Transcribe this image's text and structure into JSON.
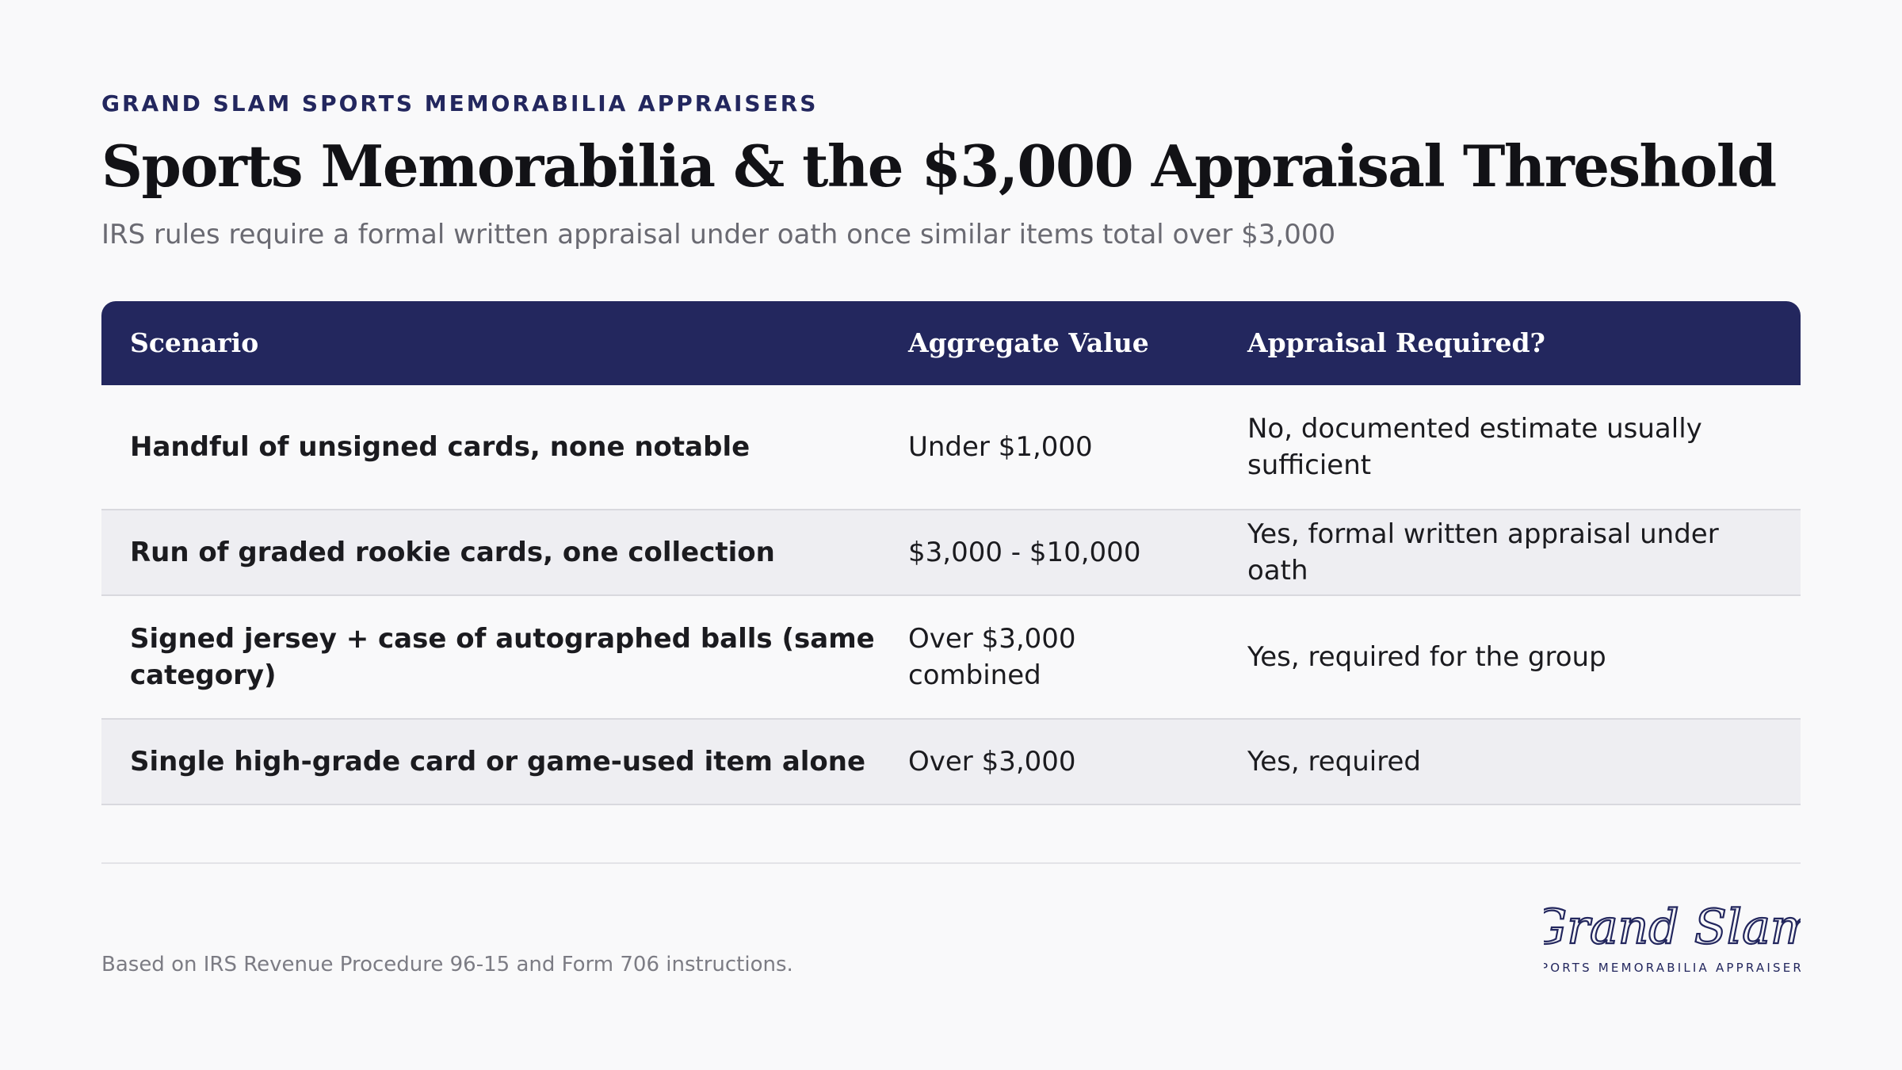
{
  "header": {
    "eyebrow": "GRAND SLAM SPORTS MEMORABILIA APPRAISERS",
    "title": "Sports Memorabilia & the $3,000 Appraisal Threshold",
    "subtitle": "IRS rules require a formal written appraisal under oath once similar items total over $3,000"
  },
  "table": {
    "columns": [
      "Scenario",
      "Aggregate Value",
      "Appraisal Required?"
    ],
    "rows": [
      {
        "scenario": "Handful of unsigned cards, none notable",
        "value": "Under $1,000",
        "required": "No, documented estimate usually sufficient"
      },
      {
        "scenario": "Run of graded rookie cards, one collection",
        "value": "$3,000 - $10,000",
        "required": "Yes, formal written appraisal under oath"
      },
      {
        "scenario": "Signed jersey + case of autographed balls (same category)",
        "value": "Over $3,000 combined",
        "required": "Yes, required for the group"
      },
      {
        "scenario": "Single high-grade card or game-used item alone",
        "value": "Over $3,000",
        "required": "Yes, required"
      }
    ]
  },
  "footer": {
    "note": "Based on IRS Revenue Procedure 96-15 and Form 706 instructions.",
    "logo_script": "Grand Slam",
    "logo_tagline": "SPORTS MEMORABILIA APPRAISERS"
  },
  "colors": {
    "navy": "#23275e",
    "row_alt": "#eeeef2",
    "background": "#f9f9fa"
  }
}
